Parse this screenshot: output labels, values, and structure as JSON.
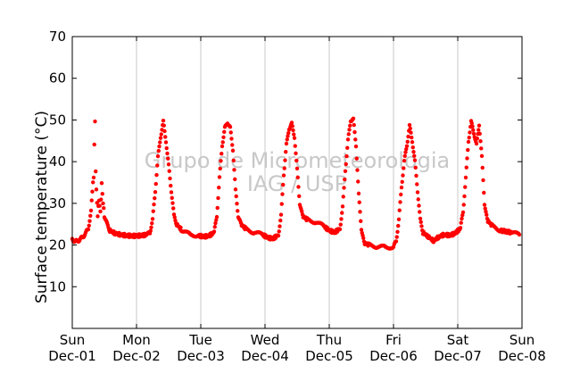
{
  "chart_data": {
    "type": "scatter",
    "title": "",
    "ylabel": "Surface temperature (°C)",
    "xlabel": "",
    "ylim": [
      0,
      70
    ],
    "yticks": [
      10,
      20,
      30,
      40,
      50,
      60,
      70
    ],
    "xlim_days": [
      0,
      7
    ],
    "grid": "vertical",
    "x_ticks": [
      {
        "day": "Sun",
        "date": "Dec-01"
      },
      {
        "day": "Mon",
        "date": "Dec-02"
      },
      {
        "day": "Tue",
        "date": "Dec-03"
      },
      {
        "day": "Wed",
        "date": "Dec-04"
      },
      {
        "day": "Thu",
        "date": "Dec-05"
      },
      {
        "day": "Fri",
        "date": "Dec-06"
      },
      {
        "day": "Sat",
        "date": "Dec-07"
      },
      {
        "day": "Sun",
        "date": "Dec-08"
      }
    ],
    "series": [
      {
        "color": "#ff0000",
        "points": [
          [
            "Dec-01 00:00",
            21.5
          ],
          [
            "Dec-01 01:00",
            20.8
          ],
          [
            "Dec-01 02:00",
            21.0
          ],
          [
            "Dec-01 03:00",
            21.4
          ],
          [
            "Dec-01 04:00",
            22.0
          ],
          [
            "Dec-01 05:00",
            22.8
          ],
          [
            "Dec-01 06:00",
            24.0
          ],
          [
            "Dec-01 07:00",
            28.0
          ],
          [
            "Dec-01 07:30",
            33.0
          ],
          [
            "Dec-01 08:00",
            36.5
          ],
          [
            "Dec-01 08:15",
            44.0
          ],
          [
            "Dec-01 08:30",
            49.5
          ],
          [
            "Dec-01 08:45",
            38.0
          ],
          [
            "Dec-01 09:00",
            33.0
          ],
          [
            "Dec-01 09:30",
            27.0
          ],
          [
            "Dec-01 10:00",
            31.0
          ],
          [
            "Dec-01 10:30",
            28.0
          ],
          [
            "Dec-01 11:00",
            34.5
          ],
          [
            "Dec-01 11:30",
            30.0
          ],
          [
            "Dec-01 12:00",
            27.0
          ],
          [
            "Dec-01 13:00",
            25.0
          ],
          [
            "Dec-01 14:00",
            23.5
          ],
          [
            "Dec-01 16:00",
            22.8
          ],
          [
            "Dec-01 18:00",
            22.5
          ],
          [
            "Dec-01 20:00",
            22.3
          ],
          [
            "Dec-01 22:00",
            22.2
          ],
          [
            "Dec-02 00:00",
            22.2
          ],
          [
            "Dec-02 02:00",
            22.3
          ],
          [
            "Dec-02 04:00",
            22.5
          ],
          [
            "Dec-02 05:00",
            23.0
          ],
          [
            "Dec-02 06:00",
            26.0
          ],
          [
            "Dec-02 07:00",
            33.0
          ],
          [
            "Dec-02 08:00",
            41.0
          ],
          [
            "Dec-02 09:00",
            46.0
          ],
          [
            "Dec-02 10:00",
            49.5
          ],
          [
            "Dec-02 11:00",
            45.0
          ],
          [
            "Dec-02 12:00",
            39.0
          ],
          [
            "Dec-02 13:00",
            33.0
          ],
          [
            "Dec-02 14:00",
            27.0
          ],
          [
            "Dec-02 15:00",
            25.0
          ],
          [
            "Dec-02 17:00",
            23.5
          ],
          [
            "Dec-02 20:00",
            22.5
          ],
          [
            "Dec-02 23:00",
            22.3
          ],
          [
            "Dec-03 01:00",
            22.0
          ],
          [
            "Dec-03 03:00",
            22.2
          ],
          [
            "Dec-03 05:00",
            23.0
          ],
          [
            "Dec-03 06:00",
            27.0
          ],
          [
            "Dec-03 07:00",
            36.0
          ],
          [
            "Dec-03 08:00",
            44.0
          ],
          [
            "Dec-03 09:00",
            48.0
          ],
          [
            "Dec-03 10:00",
            49.5
          ],
          [
            "Dec-03 11:00",
            48.0
          ],
          [
            "Dec-03 12:00",
            43.0
          ],
          [
            "Dec-03 13:00",
            33.0
          ],
          [
            "Dec-03 14:00",
            27.0
          ],
          [
            "Dec-03 15:00",
            25.0
          ],
          [
            "Dec-03 17:00",
            23.8
          ],
          [
            "Dec-03 20:00",
            23.0
          ],
          [
            "Dec-03 23:00",
            22.5
          ],
          [
            "Dec-04 01:00",
            21.8
          ],
          [
            "Dec-04 03:00",
            21.5
          ],
          [
            "Dec-04 05:00",
            22.5
          ],
          [
            "Dec-04 06:00",
            27.0
          ],
          [
            "Dec-04 07:00",
            37.0
          ],
          [
            "Dec-04 08:00",
            44.0
          ],
          [
            "Dec-04 09:00",
            48.0
          ],
          [
            "Dec-04 10:00",
            49.0
          ],
          [
            "Dec-04 11:00",
            46.0
          ],
          [
            "Dec-04 12:00",
            38.0
          ],
          [
            "Dec-04 13:00",
            30.0
          ],
          [
            "Dec-04 14:00",
            27.0
          ],
          [
            "Dec-04 16:00",
            26.0
          ],
          [
            "Dec-04 19:00",
            25.5
          ],
          [
            "Dec-04 22:00",
            24.5
          ],
          [
            "Dec-05 00:00",
            23.5
          ],
          [
            "Dec-05 02:00",
            23.0
          ],
          [
            "Dec-05 04:00",
            24.0
          ],
          [
            "Dec-05 05:00",
            29.0
          ],
          [
            "Dec-05 06:00",
            38.0
          ],
          [
            "Dec-05 07:00",
            45.0
          ],
          [
            "Dec-05 08:00",
            50.0
          ],
          [
            "Dec-05 09:00",
            50.0
          ],
          [
            "Dec-05 10:00",
            44.0
          ],
          [
            "Dec-05 11:00",
            32.0
          ],
          [
            "Dec-05 12:00",
            24.0
          ],
          [
            "Dec-05 13:00",
            20.5
          ],
          [
            "Dec-05 15:00",
            20.0
          ],
          [
            "Dec-05 18:00",
            19.6
          ],
          [
            "Dec-05 21:00",
            19.5
          ],
          [
            "Dec-06 00:00",
            19.5
          ],
          [
            "Dec-06 01:00",
            21.0
          ],
          [
            "Dec-06 02:00",
            26.0
          ],
          [
            "Dec-06 03:00",
            34.0
          ],
          [
            "Dec-06 04:00",
            40.0
          ],
          [
            "Dec-06 05:00",
            44.0
          ],
          [
            "Dec-06 06:00",
            48.5
          ],
          [
            "Dec-06 07:00",
            45.0
          ],
          [
            "Dec-06 08:00",
            40.0
          ],
          [
            "Dec-06 09:00",
            33.0
          ],
          [
            "Dec-06 10:00",
            26.0
          ],
          [
            "Dec-06 11:00",
            23.0
          ],
          [
            "Dec-06 13:00",
            22.0
          ],
          [
            "Dec-06 15:00",
            21.0
          ],
          [
            "Dec-06 17:00",
            22.0
          ],
          [
            "Dec-06 19:00",
            22.5
          ],
          [
            "Dec-06 21:00",
            22.3
          ],
          [
            "Dec-06 23:00",
            22.8
          ],
          [
            "Dec-07 01:00",
            24.0
          ],
          [
            "Dec-07 02:00",
            28.0
          ],
          [
            "Dec-07 03:00",
            36.0
          ],
          [
            "Dec-07 04:00",
            45.0
          ],
          [
            "Dec-07 05:00",
            49.5
          ],
          [
            "Dec-07 06:00",
            47.0
          ],
          [
            "Dec-07 07:00",
            44.0
          ],
          [
            "Dec-07 08:00",
            49.0
          ],
          [
            "Dec-07 09:00",
            41.0
          ],
          [
            "Dec-07 10:00",
            30.0
          ],
          [
            "Dec-07 11:00",
            26.0
          ],
          [
            "Dec-07 13:00",
            24.5
          ],
          [
            "Dec-07 16:00",
            23.5
          ],
          [
            "Dec-07 20:00",
            23.0
          ],
          [
            "Dec-07 23:00",
            22.5
          ]
        ]
      }
    ],
    "watermark": [
      "Grupo de Micrometeorologia",
      "IAG / USP"
    ]
  }
}
